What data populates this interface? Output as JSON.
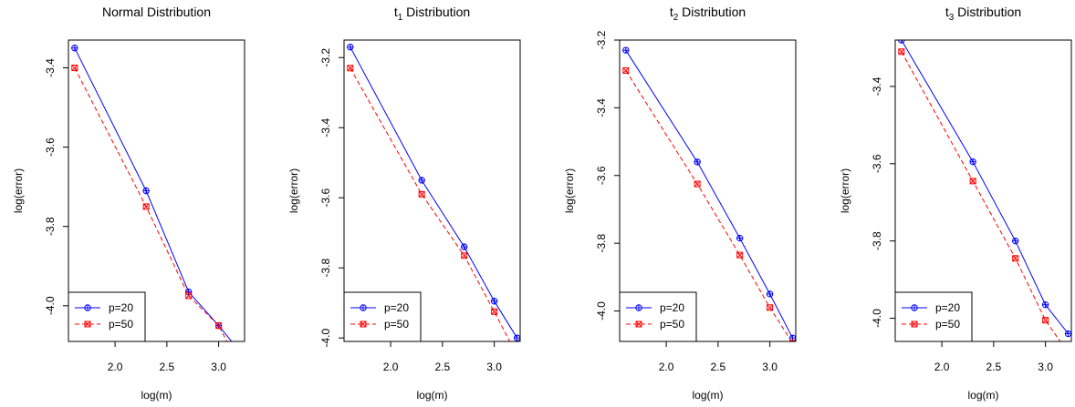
{
  "colors": {
    "p20": "#0000ff",
    "p50": "#ff0000"
  },
  "chart_data": [
    {
      "type": "line",
      "title": "Normal Distribution",
      "title_sub": "",
      "title_rest": "",
      "xlabel": "log(m)",
      "ylabel": "log(error)",
      "xlim": [
        1.55,
        3.25
      ],
      "ylim": [
        -4.09,
        -3.33
      ],
      "xticks": [
        2.0,
        2.5,
        3.0
      ],
      "xtick_labels": [
        "2.0",
        "2.5",
        "3.0"
      ],
      "yticks": [
        -3.4,
        -3.6,
        -3.8,
        -4.0
      ],
      "ytick_labels": [
        "-3.4",
        "-3.6",
        "-3.8",
        "-4.0"
      ],
      "legend_position": "bottom-left",
      "series": [
        {
          "name": "p=20",
          "x": [
            1.61,
            2.3,
            2.71,
            3.0,
            3.22
          ],
          "y": [
            -3.35,
            -3.71,
            -3.965,
            -4.05,
            -4.12
          ]
        },
        {
          "name": "p=50",
          "x": [
            1.61,
            2.3,
            2.71,
            3.0,
            3.22
          ],
          "y": [
            -3.4,
            -3.75,
            -3.975,
            -4.05,
            -4.16
          ]
        }
      ]
    },
    {
      "type": "line",
      "title": "t",
      "title_sub": "1",
      "title_rest": " Distribution",
      "xlabel": "log(m)",
      "ylabel": "log(error)",
      "xlim": [
        1.55,
        3.25
      ],
      "ylim": [
        -4.01,
        -3.15
      ],
      "xticks": [
        2.0,
        2.5,
        3.0
      ],
      "xtick_labels": [
        "2.0",
        "2.5",
        "3.0"
      ],
      "yticks": [
        -3.2,
        -3.4,
        -3.6,
        -3.8,
        -4.0
      ],
      "ytick_labels": [
        "-3.2",
        "-3.4",
        "-3.6",
        "-3.8",
        "-4.0"
      ],
      "legend_position": "bottom-left",
      "series": [
        {
          "name": "p=20",
          "x": [
            1.61,
            2.3,
            2.71,
            3.0,
            3.22
          ],
          "y": [
            -3.17,
            -3.55,
            -3.74,
            -3.895,
            -4.0
          ]
        },
        {
          "name": "p=50",
          "x": [
            1.61,
            2.3,
            2.71,
            3.0,
            3.22
          ],
          "y": [
            -3.23,
            -3.59,
            -3.765,
            -3.925,
            -4.05
          ]
        }
      ]
    },
    {
      "type": "line",
      "title": "t",
      "title_sub": "2",
      "title_rest": " Distribution",
      "xlabel": "log(m)",
      "ylabel": "log(error)",
      "xlim": [
        1.55,
        3.25
      ],
      "ylim": [
        -4.09,
        -3.2
      ],
      "xticks": [
        2.0,
        2.5,
        3.0
      ],
      "xtick_labels": [
        "2.0",
        "2.5",
        "3.0"
      ],
      "yticks": [
        -3.2,
        -3.4,
        -3.6,
        -3.8,
        -4.0
      ],
      "ytick_labels": [
        "-3.2",
        "-3.4",
        "-3.6",
        "-3.8",
        "-4.0"
      ],
      "legend_position": "bottom-left",
      "series": [
        {
          "name": "p=20",
          "x": [
            1.61,
            2.3,
            2.71,
            3.0,
            3.22
          ],
          "y": [
            -3.23,
            -3.56,
            -3.785,
            -3.95,
            -4.08
          ]
        },
        {
          "name": "p=50",
          "x": [
            1.61,
            2.3,
            2.71,
            3.0,
            3.22
          ],
          "y": [
            -3.29,
            -3.625,
            -3.835,
            -3.99,
            -4.095
          ]
        }
      ]
    },
    {
      "type": "line",
      "title": "t",
      "title_sub": "3",
      "title_rest": " Distribution",
      "xlabel": "log(m)",
      "ylabel": "log(error)",
      "xlim": [
        1.55,
        3.25
      ],
      "ylim": [
        -4.06,
        -3.28
      ],
      "xticks": [
        2.0,
        2.5,
        3.0
      ],
      "xtick_labels": [
        "2.0",
        "2.5",
        "3.0"
      ],
      "yticks": [
        -3.4,
        -3.6,
        -3.8,
        -4.0
      ],
      "ytick_labels": [
        "-3.4",
        "-3.6",
        "-3.8",
        "-4.0"
      ],
      "legend_position": "bottom-left",
      "series": [
        {
          "name": "p=20",
          "x": [
            1.61,
            2.3,
            2.71,
            3.0,
            3.22
          ],
          "y": [
            -3.28,
            -3.595,
            -3.8,
            -3.965,
            -4.04
          ]
        },
        {
          "name": "p=50",
          "x": [
            1.61,
            2.3,
            2.71,
            3.0,
            3.22
          ],
          "y": [
            -3.31,
            -3.645,
            -3.845,
            -4.005,
            -4.09
          ]
        }
      ]
    }
  ]
}
